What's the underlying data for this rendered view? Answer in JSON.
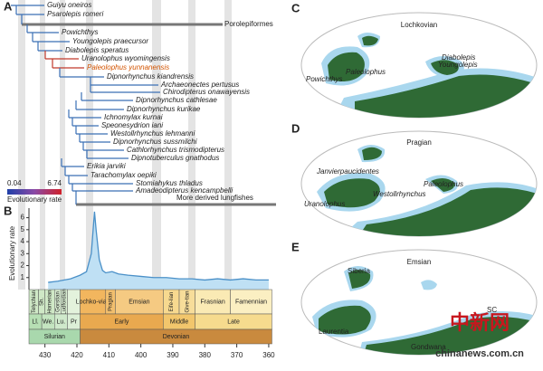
{
  "panels": {
    "a": "A",
    "b": "B",
    "c": "C",
    "d": "D",
    "e": "E"
  },
  "tree": {
    "taxa": [
      "Guiyu oneiros",
      "Psarolepis romeri",
      "Porolepiformes",
      "Powichthys",
      "Youngolepis praecursor",
      "Diabolepis speratus",
      "Uranolophus wyomingensis",
      "Paleolophus yunnanensis",
      "Dipnorhynchus kiandrensis",
      "Archaeonectes pertusus",
      "Chirodipterus onawayensis",
      "Dipnorhynchus cathlesae",
      "Dipnorhynchus kurikae",
      "Ichnomylax kurnai",
      "Speonesydrion iani",
      "Westollrhynchus lehmanni",
      "Dipnorhynchus sussmilchi",
      "Cathlorhynchus trismodipterus",
      "Dipnotuberculus gnathodus",
      "Erikia jarviki",
      "Tarachomylax oepiki",
      "Stomiahykus thladus",
      "Amadeodipterus kencampbelli",
      "More derived lungfishes"
    ],
    "colorbar": {
      "min": 0.04,
      "max": 6.74,
      "label": "Evolutionary rate"
    }
  },
  "chart_data": {
    "type": "area",
    "ylabel": "Evolutionary rate",
    "x": [
      429,
      426,
      422,
      419,
      417,
      415.5,
      414.5,
      414,
      413,
      412,
      411,
      409,
      407,
      404,
      400,
      396,
      392,
      388,
      384,
      380,
      376,
      372,
      368,
      364,
      360
    ],
    "values": [
      0.6,
      0.7,
      0.9,
      1.2,
      1.5,
      3,
      6.5,
      5,
      2.5,
      1.6,
      1.4,
      1.5,
      1.3,
      1.2,
      1.1,
      1.0,
      1.0,
      0.9,
      0.9,
      0.8,
      0.9,
      0.8,
      0.9,
      0.8,
      0.8
    ],
    "color": "#4a90c8",
    "xlim": [
      435,
      358
    ],
    "ylim": [
      0,
      6.8
    ],
    "yticks": [
      1,
      2,
      3,
      4,
      5,
      6
    ],
    "xticks": [
      430,
      420,
      410,
      400,
      390,
      380,
      370,
      360
    ]
  },
  "timescale": {
    "stages": [
      {
        "label": "Telychian",
        "start": 435,
        "end": 432,
        "color": "#cfe8c6"
      },
      {
        "label": "Sh.",
        "start": 432,
        "end": 430,
        "color": "#cfe8c6"
      },
      {
        "label": "Homerian",
        "start": 430,
        "end": 427,
        "color": "#cfe8c6"
      },
      {
        "label": "Gorstian",
        "start": 427,
        "end": 425,
        "color": "#d9eed2"
      },
      {
        "label": "Ludfordian",
        "start": 425,
        "end": 423,
        "color": "#d9eed2"
      },
      {
        "label": null,
        "start": 423,
        "end": 419,
        "color": "#e3f2dc"
      },
      {
        "label": "Lochko-vian",
        "start": 419,
        "end": 411,
        "color": "#f2b65e"
      },
      {
        "label": "Pragian",
        "start": 411,
        "end": 408,
        "color": "#f2bf6e"
      },
      {
        "label": "Emsian",
        "start": 408,
        "end": 393,
        "color": "#f5ca82"
      },
      {
        "label": "Eife-lian",
        "start": 393,
        "end": 388,
        "color": "#f7d98f"
      },
      {
        "label": "Give-tian",
        "start": 388,
        "end": 383,
        "color": "#f7dd9a"
      },
      {
        "label": "Frasnian",
        "start": 383,
        "end": 372,
        "color": "#faeab4"
      },
      {
        "label": "Famennian",
        "start": 372,
        "end": 359,
        "color": "#fbefc2"
      }
    ],
    "epochs": [
      {
        "label": "Ll.",
        "start": 435,
        "end": 431,
        "color": "#b7dfb4"
      },
      {
        "label": "We.",
        "start": 431,
        "end": 427,
        "color": "#c4e5c0"
      },
      {
        "label": "Lu.",
        "start": 427,
        "end": 423,
        "color": "#cfe9cb"
      },
      {
        "label": "Pr",
        "start": 423,
        "end": 419,
        "color": "#dcefd7"
      },
      {
        "label": "Early",
        "start": 419,
        "end": 393,
        "color": "#e9a94f"
      },
      {
        "label": "Middle",
        "start": 393,
        "end": 383,
        "color": "#f2c66c"
      },
      {
        "label": "Late",
        "start": 383,
        "end": 359,
        "color": "#f6db8e"
      }
    ],
    "periods": [
      {
        "label": "Silurian",
        "start": 435,
        "end": 419,
        "color": "#a9d8ad"
      },
      {
        "label": "Devonian",
        "start": 419,
        "end": 359,
        "color": "#c98a3e"
      }
    ]
  },
  "maps": {
    "c": {
      "title": "Lochkovian",
      "labels": [
        "Powichthys",
        "Paleolophus",
        "Diabolepis",
        "Youngolepis"
      ]
    },
    "d": {
      "title": "Pragian",
      "labels": [
        "Janvierpaucidentes",
        "Uranolophus",
        "Westollrhynchus",
        "Paleolophus"
      ]
    },
    "e": {
      "title": "Emsian",
      "labels": [
        "Siberia",
        "Laurentia",
        "Gondwana",
        "SC"
      ]
    }
  },
  "watermark": {
    "logo": "中新网",
    "url": "chinanews.com.cn"
  }
}
